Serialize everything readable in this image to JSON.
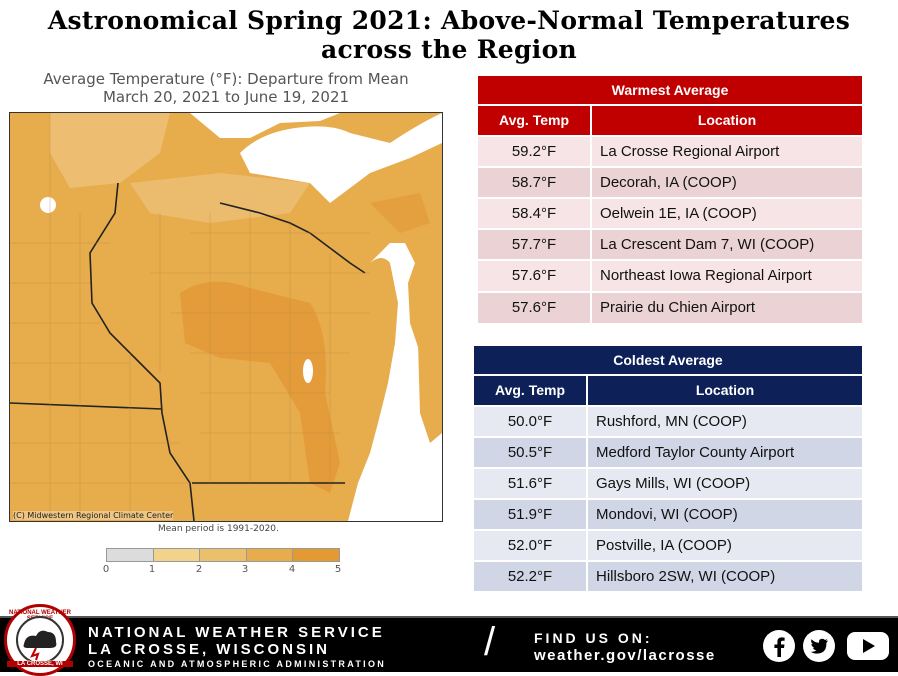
{
  "title": "Astronomical Spring 2021:  Above-Normal Temperatures across the Region",
  "map": {
    "caption_line1": "Average Temperature (°F): Departure from Mean",
    "caption_line2": "March 20, 2021 to June 19, 2021",
    "credit": "(C) Midwestern Regional Climate Center",
    "mean_note": "Mean period is 1991-2020.",
    "legend_ticks": [
      "0",
      "1",
      "2",
      "3",
      "4",
      "5"
    ],
    "legend_colors": [
      "#dcdcdc",
      "#f2d38c",
      "#ebc06d",
      "#e7ac4c",
      "#e49a32"
    ],
    "colors": {
      "base": "#e7ac4c",
      "light": "#edc077",
      "dark": "#e39a3a",
      "water": "#ffffff"
    }
  },
  "warmest": {
    "header": "Warmest Average",
    "col_temp": "Avg. Temp",
    "col_location": "Location",
    "rows": [
      {
        "temp": "59.2°F",
        "location": "La Crosse Regional Airport"
      },
      {
        "temp": "58.7°F",
        "location": "Decorah, IA  (COOP)"
      },
      {
        "temp": "58.4°F",
        "location": "Oelwein 1E, IA (COOP)"
      },
      {
        "temp": "57.7°F",
        "location": "La Crescent Dam 7, WI (COOP)"
      },
      {
        "temp": "57.6°F",
        "location": "Northeast Iowa Regional Airport"
      },
      {
        "temp": "57.6°F",
        "location": "Prairie du Chien Airport"
      }
    ],
    "color": "#c00000"
  },
  "coldest": {
    "header": "Coldest Average",
    "col_temp": "Avg. Temp",
    "col_location": "Location",
    "rows": [
      {
        "temp": "50.0°F",
        "location": "Rushford, MN (COOP)"
      },
      {
        "temp": "50.5°F",
        "location": "Medford Taylor County Airport"
      },
      {
        "temp": "51.6°F",
        "location": "Gays Mills, WI (COOP)"
      },
      {
        "temp": "51.9°F",
        "location": "Mondovi, WI (COOP)"
      },
      {
        "temp": "52.0°F",
        "location": "Postville, IA (COOP)"
      },
      {
        "temp": "52.2°F",
        "location": "Hillsboro 2SW, WI (COOP)"
      }
    ],
    "color": "#0d2158"
  },
  "footer": {
    "logo_ring_text": "NATIONAL WEATHER SERVICE",
    "logo_bottom_text": "LA CROSSE, WI",
    "nws_name": "NATIONAL WEATHER SERVICE",
    "office": "LA CROSSE, WISCONSIN",
    "org": "OCEANIC AND ATMOSPHERIC ADMINISTRATION",
    "slash": "/",
    "find_us": "FIND US ON:",
    "website": "weather.gov/lacrosse",
    "icons": [
      "facebook-icon",
      "twitter-icon",
      "youtube-icon"
    ]
  }
}
